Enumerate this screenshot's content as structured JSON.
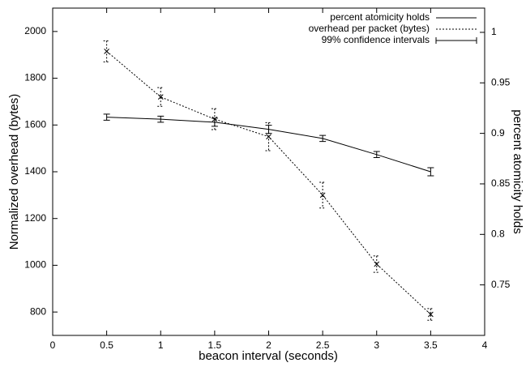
{
  "chart_data": {
    "type": "line",
    "xlabel": "beacon interval (seconds)",
    "ylabel": "Normalized overhead (bytes)",
    "y2label": "percent atomicity holds",
    "x": [
      0.5,
      1,
      1.5,
      2,
      2.5,
      3,
      3.5
    ],
    "series": [
      {
        "name": "percent atomicity holds",
        "color": "#000000",
        "dash": false,
        "marker": false,
        "axis": "y2",
        "values": [
          0.916,
          0.914,
          0.911,
          0.904,
          0.895,
          0.879,
          0.862
        ],
        "errors": [
          0.003,
          0.003,
          0.004,
          0.004,
          0.003,
          0.003,
          0.004
        ]
      },
      {
        "name": "overhead per packet (bytes)",
        "color": "#000000",
        "dash": true,
        "marker": true,
        "values": [
          1915,
          1720,
          1625,
          1550,
          1300,
          1005,
          790
        ],
        "errors": [
          45,
          40,
          45,
          60,
          55,
          35,
          25
        ]
      }
    ],
    "error_legend": "99% confidence intervals",
    "xlim": [
      0,
      4
    ],
    "xticks": [
      0,
      0.5,
      1,
      1.5,
      2,
      2.5,
      3,
      3.5,
      4
    ],
    "ylim": [
      700,
      2100
    ],
    "yticks": [
      800,
      1000,
      1200,
      1400,
      1600,
      1800,
      2000
    ],
    "y2lim": [
      0.7,
      1.024
    ],
    "y2ticks": [
      0.75,
      0.8,
      0.85,
      0.9,
      0.95,
      1
    ],
    "legend": "upper right"
  }
}
